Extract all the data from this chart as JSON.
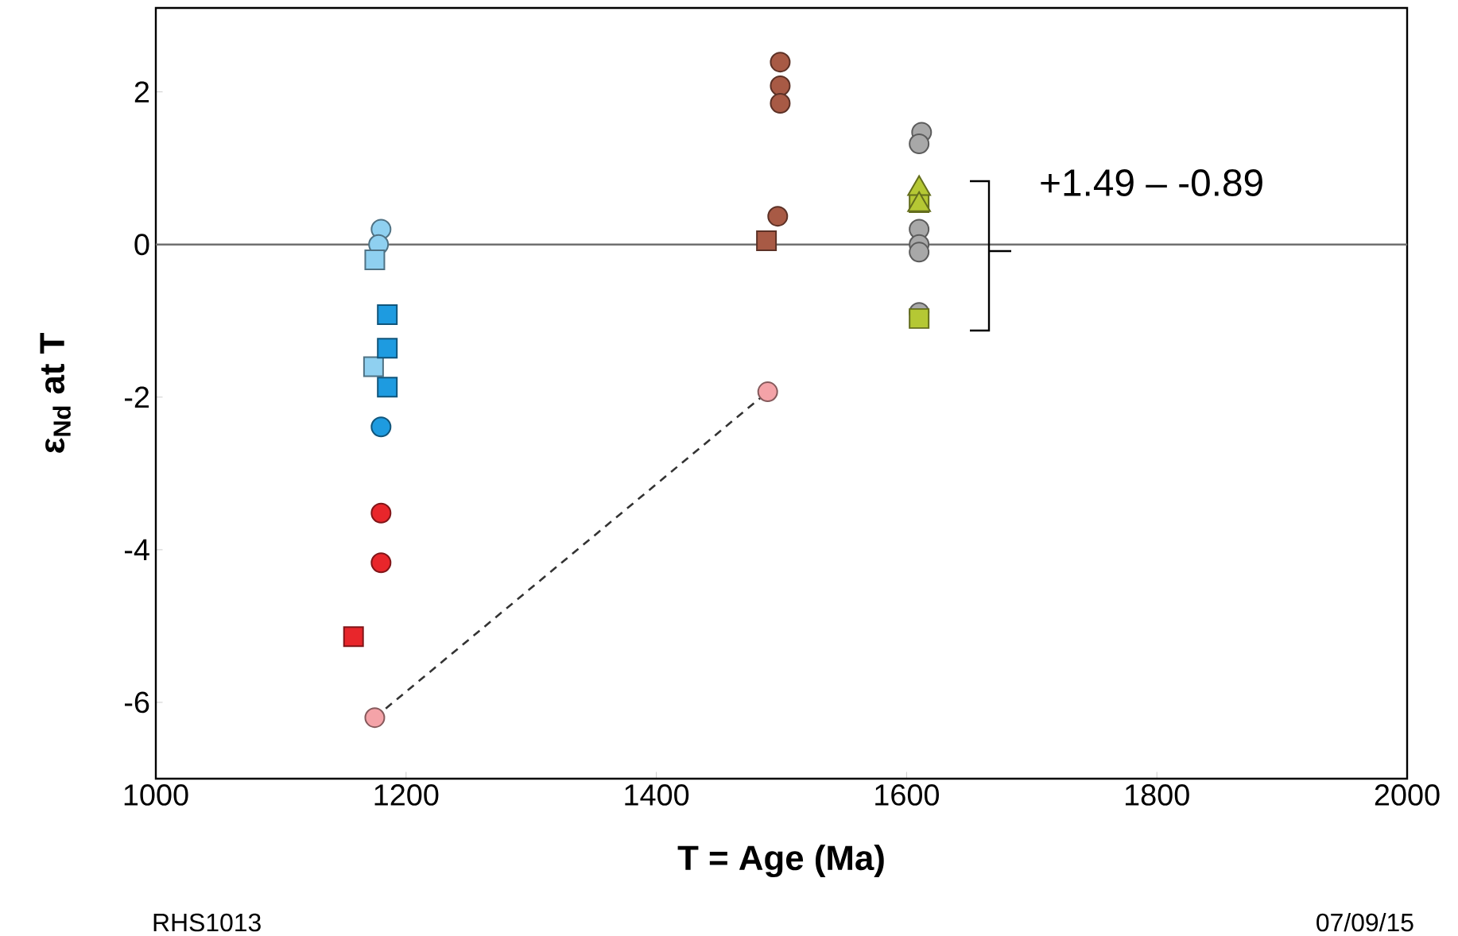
{
  "chart_data": {
    "type": "scatter",
    "xlabel": "T = Age (Ma)",
    "ylabel": "ε$_{Nd}$ at T",
    "xlim": [
      1000,
      2000
    ],
    "ylim": [
      -7,
      3.1
    ],
    "xticks": [
      1000,
      1200,
      1400,
      1600,
      1800,
      2000
    ],
    "yticks": [
      -6,
      -4,
      -2,
      0,
      2
    ],
    "grid": false,
    "ref_lines": [
      {
        "axis": "y",
        "value": 0,
        "color": "#707070"
      }
    ],
    "annotations": [
      "+1.49 – -0.89",
      "RHS1013",
      "07/09/15"
    ],
    "series": [
      {
        "type": "scatter",
        "marker": "circle",
        "color": "#8fd0f0",
        "x": [
          1180,
          1178
        ],
        "values": [
          0.2,
          0.0
        ]
      },
      {
        "type": "scatter",
        "marker": "square",
        "color": "#8fd0f0",
        "x": [
          1175,
          1174
        ],
        "values": [
          -0.2,
          -1.6
        ]
      },
      {
        "type": "scatter",
        "marker": "square",
        "color": "#1e9be0",
        "x": [
          1185,
          1185,
          1185
        ],
        "values": [
          -0.92,
          -1.36,
          -1.87
        ]
      },
      {
        "type": "scatter",
        "marker": "circle",
        "color": "#1e9be0",
        "x": [
          1180
        ],
        "values": [
          -2.39
        ]
      },
      {
        "type": "scatter",
        "marker": "circle",
        "color": "#e8262b",
        "x": [
          1180,
          1180
        ],
        "values": [
          -3.52,
          -4.17
        ]
      },
      {
        "type": "scatter",
        "marker": "square",
        "color": "#e8262b",
        "x": [
          1158
        ],
        "values": [
          -5.14
        ]
      },
      {
        "type": "line",
        "line_style": "dashed",
        "marker": "none",
        "color": "#333333",
        "x": [
          1175,
          1489
        ],
        "values": [
          -6.2,
          -1.93
        ]
      },
      {
        "type": "scatter",
        "marker": "circle",
        "color": "#f4a3a8",
        "x": [
          1175,
          1489
        ],
        "values": [
          -6.2,
          -1.93
        ]
      },
      {
        "type": "scatter",
        "marker": "circle",
        "color": "#a85a45",
        "x": [
          1499,
          1499,
          1499,
          1497
        ],
        "values": [
          2.39,
          2.08,
          1.85,
          0.37
        ]
      },
      {
        "type": "scatter",
        "marker": "square",
        "color": "#a85a45",
        "x": [
          1488
        ],
        "values": [
          0.05
        ]
      },
      {
        "type": "scatter",
        "marker": "circle",
        "color": "#a8a8a8",
        "x": [
          1612,
          1610,
          1610,
          1610,
          1610,
          1610
        ],
        "values": [
          1.47,
          1.32,
          0.2,
          0.0,
          -0.1,
          -0.89
        ]
      },
      {
        "type": "scatter",
        "marker": "square",
        "color": "#b5c834",
        "x": [
          1610,
          1610
        ],
        "values": [
          0.55,
          -0.97
        ]
      },
      {
        "marker": "triangle",
        "color": "#b5c834",
        "x": [
          1610,
          1610
        ],
        "values": [
          0.73,
          0.52
        ]
      }
    ]
  }
}
